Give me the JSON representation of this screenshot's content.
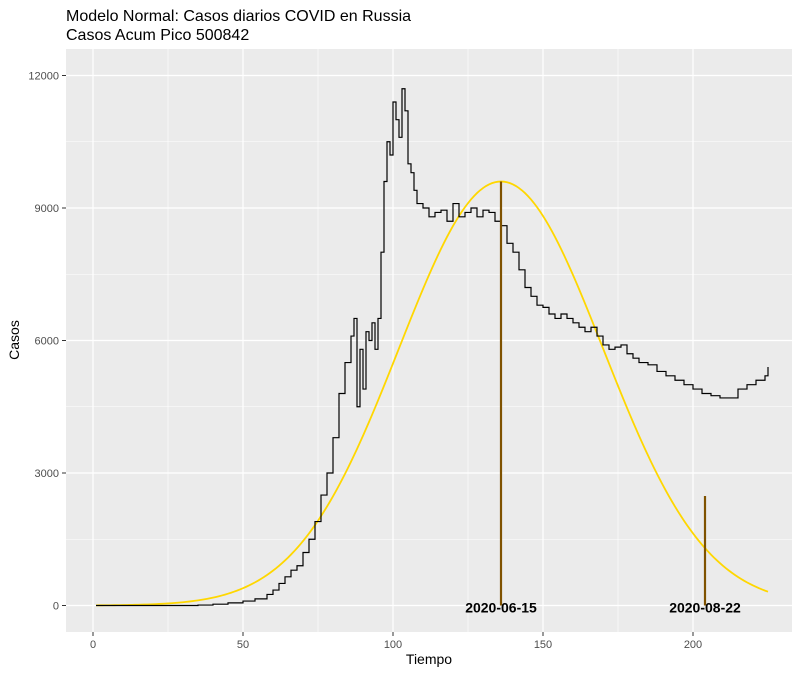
{
  "chart_data": {
    "type": "line",
    "title": "Modelo Normal: Casos diarios COVID en Russia",
    "subtitle": "Casos Acum Pico 500842",
    "xlabel": "Tiempo",
    "ylabel": "Casos",
    "xlim": [
      -9,
      233
    ],
    "ylim": [
      -600,
      12600
    ],
    "x_ticks": [
      0,
      50,
      100,
      150,
      200
    ],
    "y_ticks": [
      0,
      3000,
      6000,
      9000,
      12000
    ],
    "grid": true,
    "colors": {
      "panel": "#ebebeb",
      "grid": "#ffffff",
      "observed": "#000000",
      "model": "#ffd700",
      "marker": "#7f5200"
    },
    "observed_series": {
      "x": [
        1,
        30,
        35,
        40,
        45,
        50,
        54,
        58,
        60,
        62,
        64,
        66,
        68,
        70,
        72,
        74,
        76,
        78,
        80,
        82,
        84,
        86,
        87,
        88,
        89,
        90,
        91,
        92,
        93,
        94,
        95,
        96,
        97,
        98,
        99,
        100,
        101,
        102,
        103,
        104,
        105,
        106,
        107,
        108,
        110,
        112,
        114,
        116,
        118,
        120,
        122,
        124,
        126,
        128,
        130,
        132,
        134,
        136,
        138,
        140,
        142,
        144,
        146,
        148,
        150,
        152,
        154,
        156,
        158,
        160,
        162,
        164,
        166,
        168,
        170,
        172,
        174,
        176,
        178,
        180,
        182,
        185,
        188,
        191,
        194,
        197,
        200,
        203,
        206,
        209,
        212,
        215,
        218,
        221,
        224,
        225
      ],
      "y": [
        0,
        0,
        10,
        30,
        60,
        100,
        150,
        250,
        350,
        500,
        650,
        800,
        900,
        1200,
        1500,
        1900,
        2500,
        3000,
        3800,
        4800,
        5500,
        6100,
        6500,
        4500,
        5800,
        4900,
        6200,
        6000,
        6400,
        5800,
        6500,
        8000,
        9600,
        10500,
        10200,
        11400,
        11000,
        10600,
        11700,
        11200,
        10000,
        9800,
        9400,
        9100,
        9000,
        8800,
        8900,
        8950,
        8700,
        9100,
        8800,
        8900,
        9000,
        8800,
        8950,
        8900,
        8700,
        8600,
        8200,
        8000,
        7600,
        7200,
        7000,
        6800,
        6750,
        6600,
        6500,
        6600,
        6500,
        6400,
        6300,
        6200,
        6300,
        6100,
        5900,
        5800,
        5850,
        5900,
        5700,
        5600,
        5500,
        5450,
        5300,
        5200,
        5100,
        5000,
        4900,
        4800,
        4750,
        4700,
        4700,
        4900,
        5000,
        5100,
        5200,
        5400
      ]
    },
    "model_series": {
      "mean": 136,
      "sd": 34,
      "peak": 9600,
      "x_start": 1,
      "x_end": 225
    },
    "markers": [
      {
        "x": 136,
        "y": 9600,
        "label": "2020-06-15"
      },
      {
        "x": 204,
        "y": 2480,
        "label": "2020-08-22"
      }
    ]
  }
}
